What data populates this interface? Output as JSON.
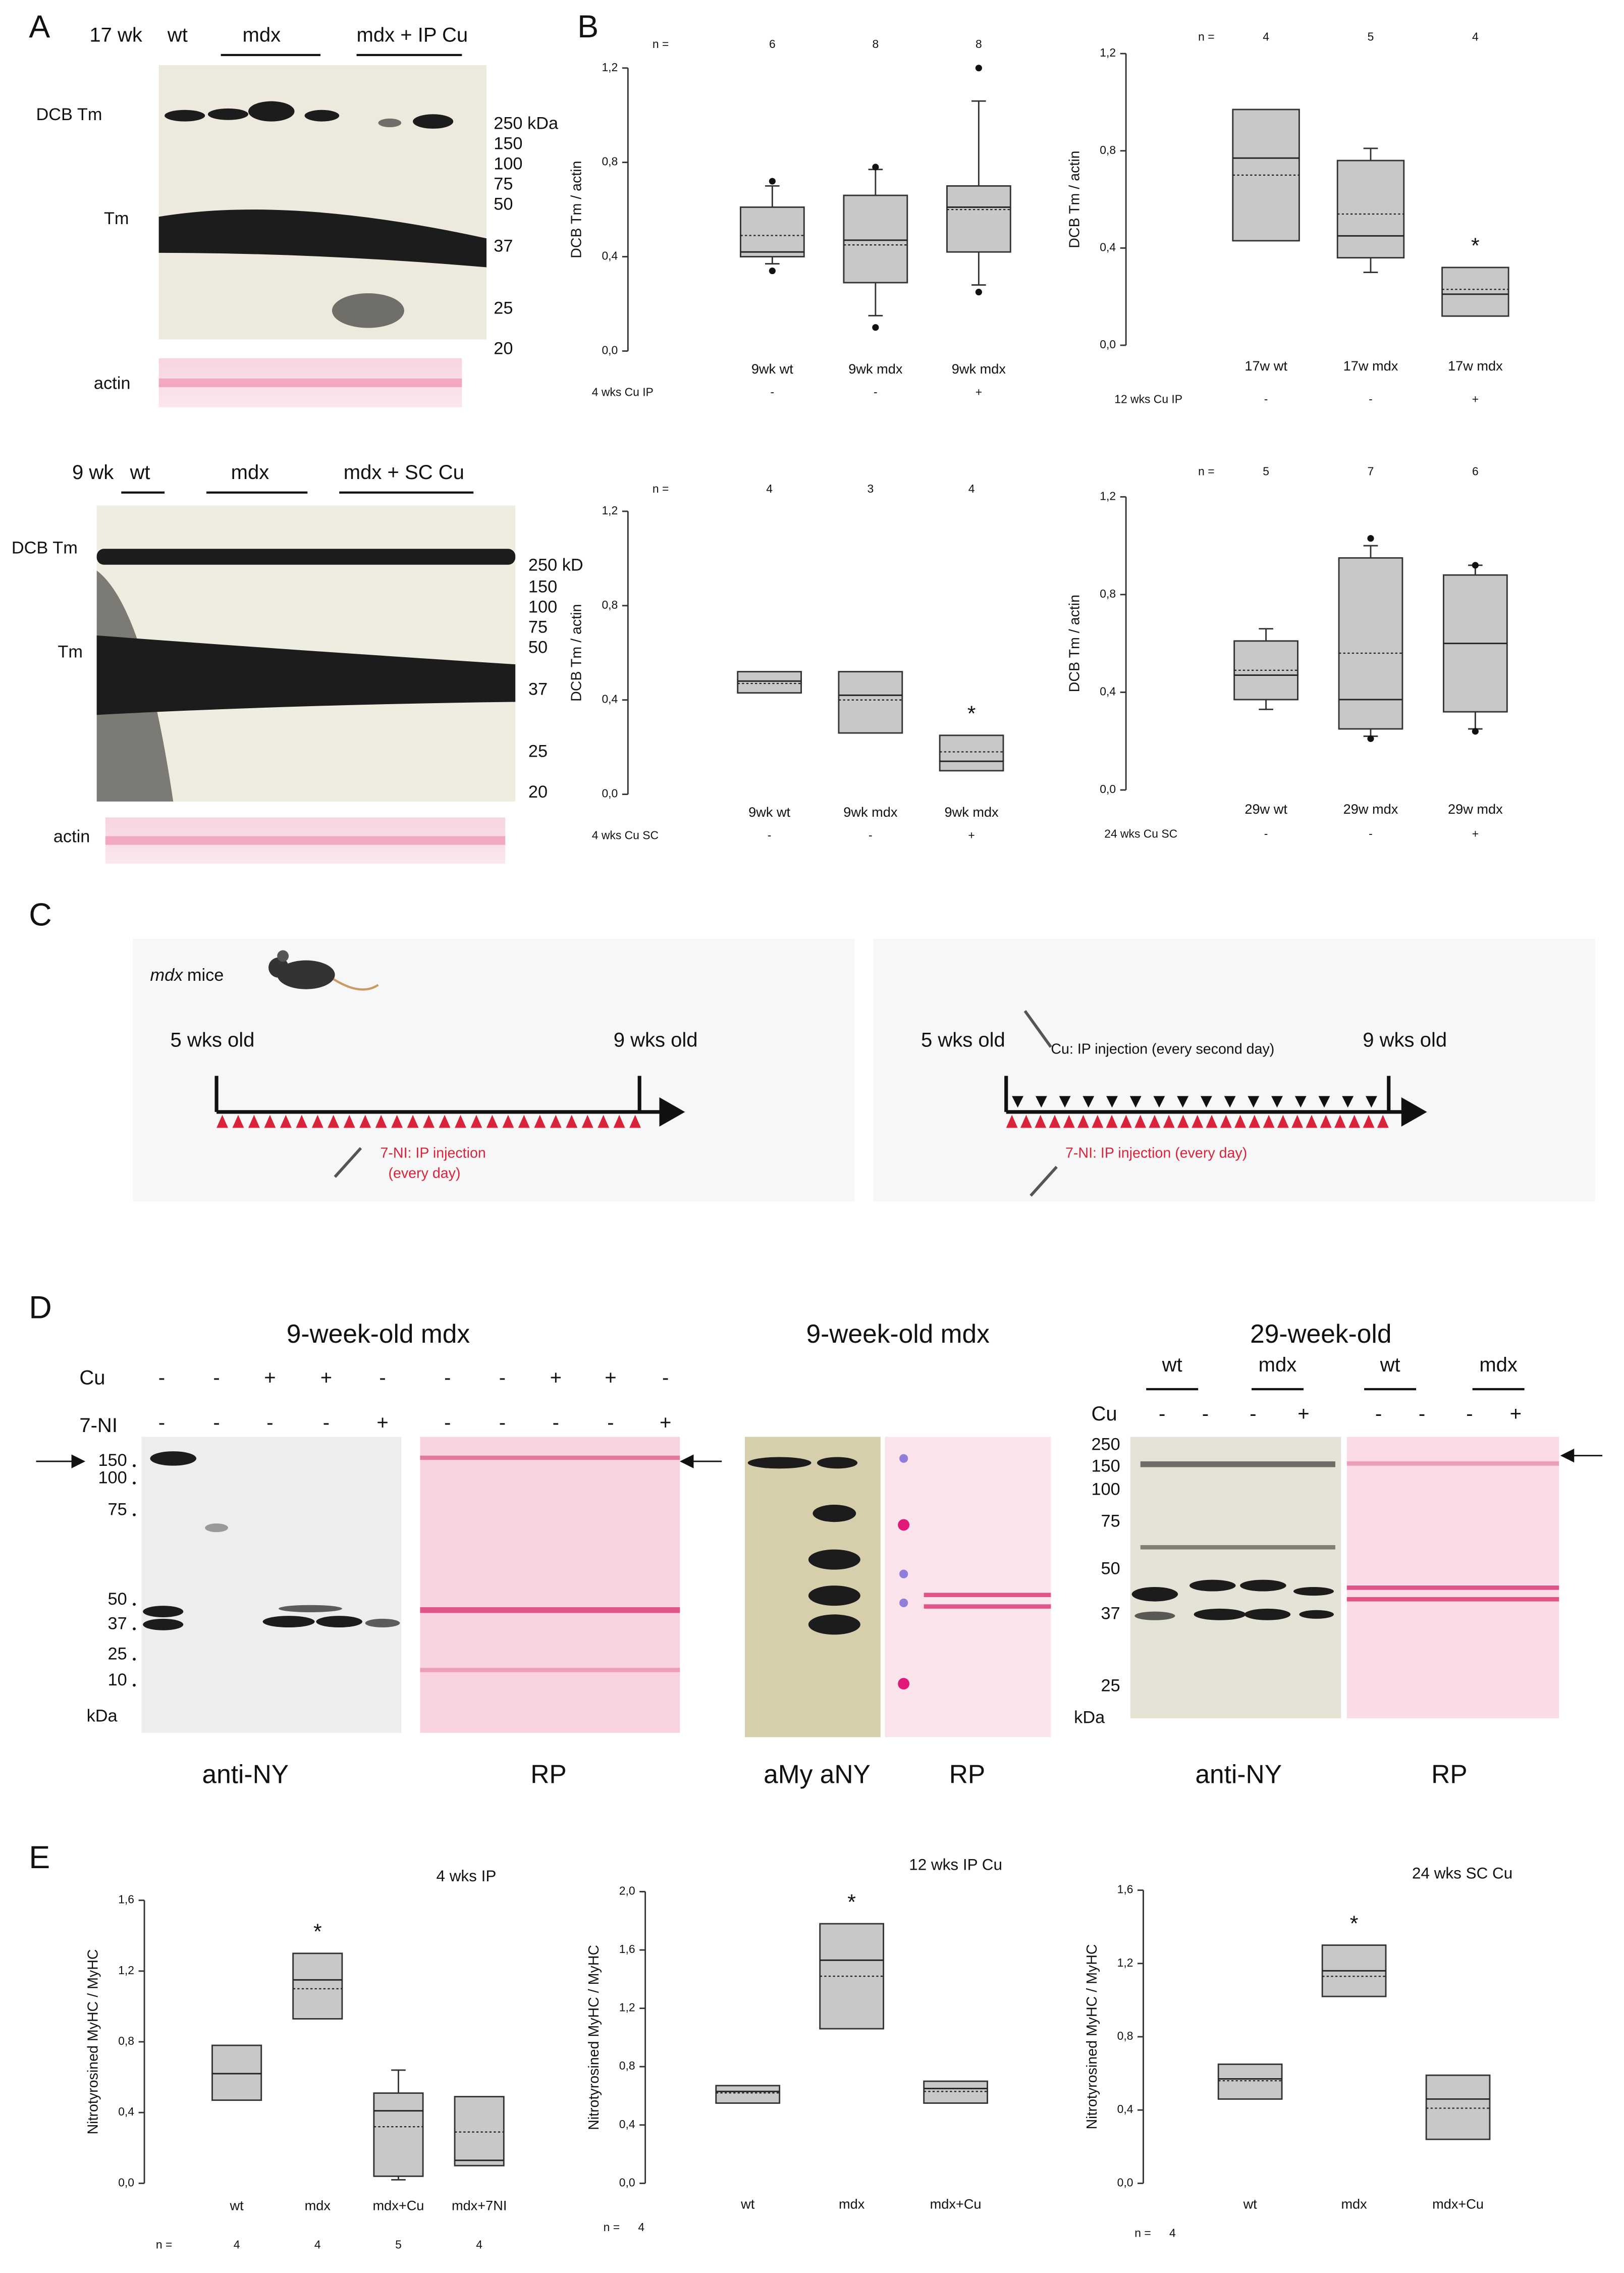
{
  "panel_labels": [
    "A",
    "B",
    "C",
    "D",
    "E"
  ],
  "panel_a": {
    "top": {
      "age": "17 wk",
      "groups": [
        "wt",
        "mdx",
        "mdx + IP Cu"
      ],
      "rows": [
        "DCB Tm",
        "Tm"
      ],
      "markers": [
        "250 kDa",
        "150",
        "100",
        "75",
        "50",
        "37",
        "25",
        "20"
      ],
      "loading": "actin"
    },
    "bottom": {
      "age": "9 wk",
      "groups": [
        "wt",
        "mdx",
        "mdx + SC Cu"
      ],
      "rows": [
        "DCB Tm",
        "Tm"
      ],
      "markers": [
        "250 kD",
        "150",
        "100",
        "75",
        "50",
        "37",
        "25",
        "20"
      ],
      "loading": "actin"
    }
  },
  "panel_c": {
    "strain": "mdx",
    "title": "mice",
    "left": {
      "start": "5 wks old",
      "end": "9 wks old",
      "injection": "7-NI: IP injection",
      "frequency": "(every day)"
    },
    "right": {
      "start": "5 wks old",
      "end": "9 wks old",
      "cu": "Cu: IP injection (every second day)",
      "ni": "7-NI: IP injection (every day)"
    }
  },
  "panel_d": {
    "left": {
      "title": "9-week-old mdx",
      "row_labels": [
        "Cu",
        "7-NI"
      ],
      "cu": [
        "-",
        "-",
        "+",
        "+",
        "-",
        "-",
        "-",
        "+",
        "+",
        "-"
      ],
      "ni": [
        "-",
        "-",
        "-",
        "-",
        "+",
        "-",
        "-",
        "-",
        "-",
        "+"
      ],
      "markers": [
        "150",
        "100",
        "75",
        "50",
        "37",
        "25",
        "10"
      ],
      "unit": "kDa",
      "captions": [
        "anti-NY",
        "RP"
      ]
    },
    "middle": {
      "title": "9-week-old mdx",
      "captions": [
        "aMy aNY",
        "RP"
      ]
    },
    "right": {
      "title": "29-week-old",
      "groups": [
        "wt",
        "mdx",
        "wt",
        "mdx"
      ],
      "row_label": "Cu",
      "cu": [
        "-",
        "-",
        "-",
        "+",
        "-",
        "-",
        "-",
        "+"
      ],
      "markers": [
        "250",
        "150",
        "100",
        "75",
        "50",
        "37",
        "25"
      ],
      "unit": "kDa",
      "captions": [
        "anti-NY",
        "RP"
      ]
    }
  },
  "chart_data": [
    {
      "type": "box",
      "ylabel": "DCB Tm / actin",
      "color": "#c8c8c8",
      "ylim": [
        0,
        1.2
      ],
      "yticks": [
        {
          "value": 0,
          "label": "0,0"
        },
        {
          "value": 0.4,
          "label": "0,4"
        },
        {
          "value": 0.8,
          "label": "0,8"
        },
        {
          "value": 1.2,
          "label": "1,2"
        }
      ],
      "categories": [
        "9wk wt",
        "9wk mdx",
        "9wk mdx"
      ],
      "n_label": "n =",
      "n": [
        6,
        8,
        8
      ],
      "treatment_label": "4 wks Cu  IP",
      "treatment": [
        "-",
        "-",
        "+"
      ],
      "boxes": [
        {
          "low": 0.37,
          "q1": 0.4,
          "median": 0.42,
          "mean": 0.49,
          "q3": 0.61,
          "high": 0.7,
          "outliers": [
            0.72,
            0.34
          ]
        },
        {
          "low": 0.15,
          "q1": 0.29,
          "median": 0.47,
          "mean": 0.45,
          "q3": 0.66,
          "high": 0.77,
          "outliers": [
            0.78,
            0.1
          ]
        },
        {
          "low": 0.28,
          "q1": 0.42,
          "median": 0.61,
          "mean": 0.6,
          "q3": 0.7,
          "high": 1.06,
          "outliers": [
            1.2,
            0.25
          ]
        }
      ]
    },
    {
      "type": "box",
      "ylabel": "DCB Tm / actin",
      "color": "#c8c8c8",
      "ylim": [
        0,
        1.2
      ],
      "yticks": [
        {
          "value": 0,
          "label": "0,0"
        },
        {
          "value": 0.4,
          "label": "0,4"
        },
        {
          "value": 0.8,
          "label": "0,8"
        },
        {
          "value": 1.2,
          "label": "1,2"
        }
      ],
      "categories": [
        "17w wt",
        "17w mdx",
        "17w mdx"
      ],
      "n_label": "n =",
      "n": [
        4,
        5,
        4
      ],
      "treatment_label": "12 wks Cu IP",
      "treatment": [
        "-",
        "-",
        "+"
      ],
      "significance": [
        null,
        null,
        "*"
      ],
      "boxes": [
        {
          "q1": 0.43,
          "median": 0.77,
          "mean": 0.7,
          "q3": 0.97
        },
        {
          "low": 0.3,
          "q1": 0.36,
          "median": 0.45,
          "mean": 0.54,
          "q3": 0.76,
          "high": 0.81
        },
        {
          "q1": 0.12,
          "median": 0.21,
          "mean": 0.23,
          "q3": 0.32
        }
      ]
    },
    {
      "type": "box",
      "ylabel": "DCB Tm / actin",
      "color": "#c8c8c8",
      "ylim": [
        0,
        1.2
      ],
      "yticks": [
        {
          "value": 0,
          "label": "0,0"
        },
        {
          "value": 0.4,
          "label": "0,4"
        },
        {
          "value": 0.8,
          "label": "0,8"
        },
        {
          "value": 1.2,
          "label": "1,2"
        }
      ],
      "categories": [
        "9wk wt",
        "9wk mdx",
        "9wk mdx"
      ],
      "n_label": "n =",
      "n": [
        4,
        3,
        4
      ],
      "treatment_label": "4 wks Cu  SC",
      "treatment": [
        "-",
        "-",
        "+"
      ],
      "significance": [
        null,
        null,
        "*"
      ],
      "boxes": [
        {
          "q1": 0.43,
          "median": 0.48,
          "mean": 0.47,
          "q3": 0.52
        },
        {
          "q1": 0.26,
          "median": 0.42,
          "mean": 0.4,
          "q3": 0.52
        },
        {
          "q1": 0.1,
          "median": 0.14,
          "mean": 0.18,
          "q3": 0.25
        }
      ]
    },
    {
      "type": "box",
      "ylabel": "DCB Tm / actin",
      "color": "#c8c8c8",
      "ylim": [
        0,
        1.2
      ],
      "yticks": [
        {
          "value": 0,
          "label": "0,0"
        },
        {
          "value": 0.4,
          "label": "0,4"
        },
        {
          "value": 0.8,
          "label": "0,8"
        },
        {
          "value": 1.2,
          "label": "1,2"
        }
      ],
      "categories": [
        "29w wt",
        "29w mdx",
        "29w mdx"
      ],
      "n_label": "n =",
      "n": [
        5,
        7,
        6
      ],
      "treatment_label": "24 wks Cu SC",
      "treatment": [
        "-",
        "-",
        "+"
      ],
      "boxes": [
        {
          "low": 0.33,
          "q1": 0.37,
          "median": 0.47,
          "mean": 0.49,
          "q3": 0.61,
          "high": 0.66
        },
        {
          "low": 0.22,
          "q1": 0.25,
          "median": 0.37,
          "mean": 0.56,
          "q3": 0.95,
          "high": 1.0,
          "outliers": [
            1.03,
            0.21
          ]
        },
        {
          "low": 0.25,
          "q1": 0.32,
          "median": 0.6,
          "mean": 0.6,
          "q3": 0.88,
          "high": 0.92,
          "outliers": [
            0.92,
            0.24
          ]
        }
      ]
    },
    {
      "type": "box",
      "title": "4 wks IP",
      "ylabel": "Nitrotyrosined MyHC /  MyHC",
      "color": "#c8c8c8",
      "ylim": [
        0,
        1.6
      ],
      "yticks": [
        {
          "value": 0,
          "label": "0,0"
        },
        {
          "value": 0.4,
          "label": "0,4"
        },
        {
          "value": 0.8,
          "label": "0,8"
        },
        {
          "value": 1.2,
          "label": "1,2"
        },
        {
          "value": 1.6,
          "label": "1,6"
        }
      ],
      "categories": [
        "wt",
        "mdx",
        "mdx+Cu",
        "mdx+7NI"
      ],
      "n_label": "n =",
      "n": [
        4,
        4,
        5,
        4
      ],
      "significance": [
        null,
        "*",
        null,
        null
      ],
      "boxes": [
        {
          "q1": 0.47,
          "median": 0.62,
          "mean": 0.62,
          "q3": 0.78
        },
        {
          "q1": 0.93,
          "median": 1.15,
          "mean": 1.1,
          "q3": 1.3
        },
        {
          "low": 0.02,
          "q1": 0.04,
          "median": 0.41,
          "mean": 0.32,
          "q3": 0.51,
          "high": 0.64
        },
        {
          "q1": 0.1,
          "median": 0.13,
          "mean": 0.29,
          "q3": 0.49
        }
      ]
    },
    {
      "type": "box",
      "title": "12 wks IP Cu",
      "ylabel": "Nitrotyrosined MyHC /  MyHC",
      "color": "#c8c8c8",
      "ylim": [
        0,
        2
      ],
      "yticks": [
        {
          "value": 0,
          "label": "0,0"
        },
        {
          "value": 0.4,
          "label": "0,4"
        },
        {
          "value": 0.8,
          "label": "0,8"
        },
        {
          "value": 1.2,
          "label": "1,2"
        },
        {
          "value": 1.6,
          "label": "1,6"
        },
        {
          "value": 2,
          "label": "2,0"
        }
      ],
      "categories": [
        "wt",
        "mdx",
        "mdx+Cu"
      ],
      "n_label": "n =",
      "n": 4,
      "significance": [
        null,
        "*",
        null
      ],
      "boxes": [
        {
          "q1": 0.55,
          "median": 0.63,
          "mean": 0.62,
          "q3": 0.67
        },
        {
          "q1": 1.06,
          "median": 1.53,
          "mean": 1.42,
          "q3": 1.78
        },
        {
          "q1": 0.55,
          "median": 0.65,
          "mean": 0.63,
          "q3": 0.7
        }
      ]
    },
    {
      "type": "box",
      "title": "24 wks SC Cu",
      "ylabel": "Nitrotyrosined MyHC /  MyHC",
      "color": "#c8c8c8",
      "ylim": [
        0,
        1.6
      ],
      "yticks": [
        {
          "value": 0,
          "label": "0,0"
        },
        {
          "value": 0.4,
          "label": "0,4"
        },
        {
          "value": 0.8,
          "label": "0,8"
        },
        {
          "value": 1.2,
          "label": "1,2"
        },
        {
          "value": 1.6,
          "label": "1,6"
        }
      ],
      "categories": [
        "wt",
        "mdx",
        "mdx+Cu"
      ],
      "n_label": "n =",
      "n": 4,
      "significance": [
        null,
        "*",
        null
      ],
      "boxes": [
        {
          "q1": 0.46,
          "median": 0.57,
          "mean": 0.56,
          "q3": 0.65
        },
        {
          "q1": 1.02,
          "median": 1.16,
          "mean": 1.13,
          "q3": 1.3
        },
        {
          "q1": 0.24,
          "median": 0.46,
          "mean": 0.41,
          "q3": 0.59
        }
      ]
    }
  ]
}
